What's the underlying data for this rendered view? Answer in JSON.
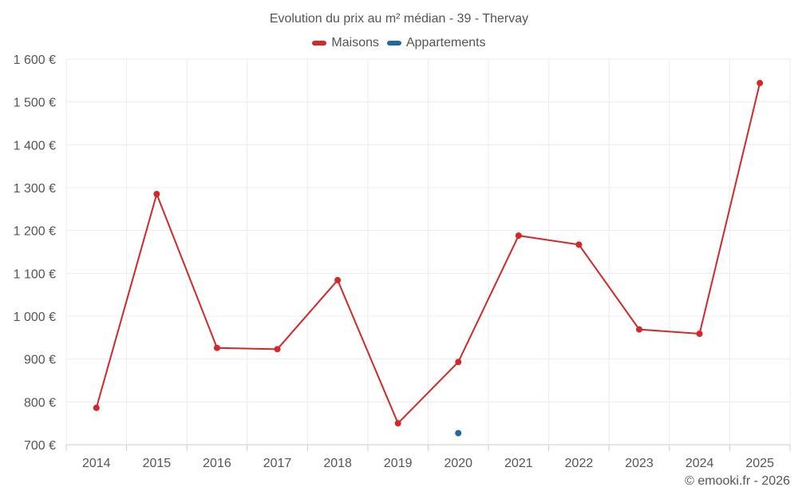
{
  "chart_data": {
    "type": "line",
    "title": "Evolution du prix au m² médian - 39 - Thervay",
    "categories": [
      "2014",
      "2015",
      "2016",
      "2017",
      "2018",
      "2019",
      "2020",
      "2021",
      "2022",
      "2023",
      "2024",
      "2025"
    ],
    "ylim": [
      700,
      1600
    ],
    "yticks": [
      700,
      800,
      900,
      1000,
      1100,
      1200,
      1300,
      1400,
      1500,
      1600
    ],
    "ytick_labels": [
      "700 €",
      "800 €",
      "900 €",
      "1 000 €",
      "1 100 €",
      "1 200 €",
      "1 300 €",
      "1 400 €",
      "1 500 €",
      "1 600 €"
    ],
    "grid": true,
    "legend_position": "top-center",
    "series": [
      {
        "name": "Maisons",
        "color": "#d62728",
        "values": [
          786,
          1285,
          926,
          923,
          1084,
          750,
          893,
          1188,
          1167,
          969,
          959,
          1544
        ]
      },
      {
        "name": "Appartements",
        "color": "#1f6aa5",
        "values": [
          null,
          null,
          null,
          null,
          null,
          null,
          727,
          null,
          null,
          null,
          null,
          null
        ]
      }
    ]
  },
  "credit": "© emooki.fr - 2026"
}
